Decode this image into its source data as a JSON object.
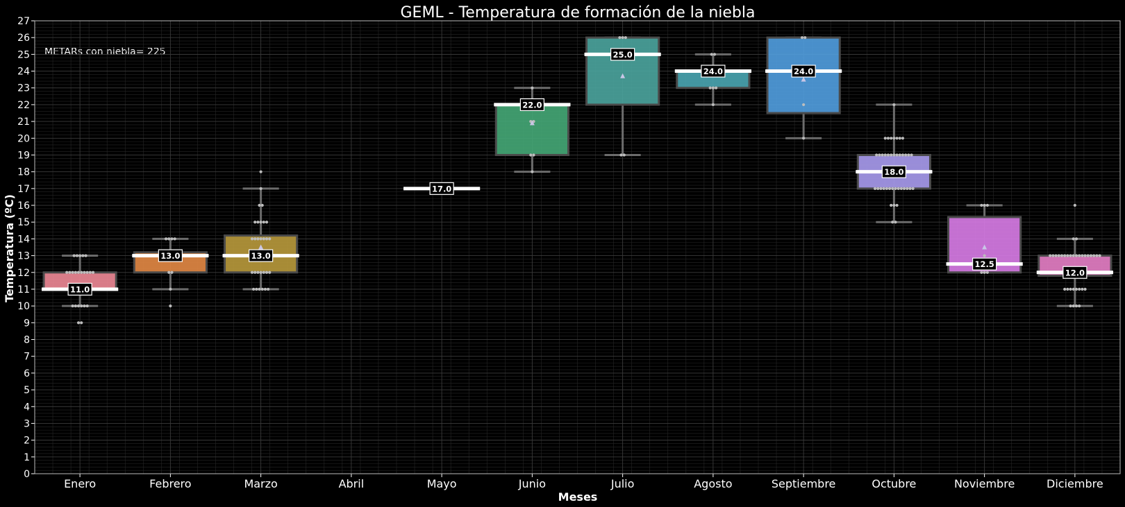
{
  "chart_data": {
    "type": "box",
    "title": "GEML - Temperatura de formación de la niebla",
    "xlabel": "Meses",
    "ylabel": "Temperatura (ºC)",
    "annotation": "METARs con niebla= 225",
    "ylim": [
      0,
      27
    ],
    "yticks": [
      0,
      1,
      2,
      3,
      4,
      5,
      6,
      7,
      8,
      9,
      10,
      11,
      12,
      13,
      14,
      15,
      16,
      17,
      18,
      19,
      20,
      21,
      22,
      23,
      24,
      25,
      26,
      27
    ],
    "grid": true,
    "categories": [
      "Enero",
      "Febrero",
      "Marzo",
      "Abril",
      "Mayo",
      "Junio",
      "Julio",
      "Agosto",
      "Septiembre",
      "Octubre",
      "Noviembre",
      "Diciembre"
    ],
    "boxes": [
      {
        "month": "Enero",
        "color": "#f08a97",
        "q1": 11,
        "median": 11,
        "q3": 12,
        "whisker_low": 10,
        "whisker_high": 13,
        "label": "11.0",
        "points": [
          [
            9,
            2
          ],
          [
            10,
            6
          ],
          [
            11,
            7
          ],
          [
            12,
            10
          ],
          [
            13,
            5
          ]
        ]
      },
      {
        "month": "Febrero",
        "color": "#e48a45",
        "q1": 12,
        "median": 13,
        "q3": 13.2,
        "whisker_low": 11,
        "whisker_high": 14,
        "label": "13.0",
        "points": [
          [
            10,
            1
          ],
          [
            11,
            1
          ],
          [
            12,
            2
          ],
          [
            13,
            5
          ],
          [
            14,
            4
          ]
        ]
      },
      {
        "month": "Marzo",
        "color": "#b99a3c",
        "q1": 12,
        "median": 13,
        "q3": 14.2,
        "whisker_low": 11,
        "whisker_high": 17,
        "mean": 13.5,
        "label": "13.0",
        "points": [
          [
            11,
            6
          ],
          [
            12,
            7
          ],
          [
            13,
            7
          ],
          [
            14,
            7
          ],
          [
            15,
            5
          ],
          [
            16,
            2
          ],
          [
            17,
            1
          ],
          [
            18,
            1
          ]
        ]
      },
      {
        "month": "Abril",
        "color": "#999999",
        "empty": true,
        "points": []
      },
      {
        "month": "Mayo",
        "color": "#ffffff",
        "q1": 17,
        "median": 17,
        "q3": 17,
        "whisker_low": 17,
        "whisker_high": 17,
        "label": "17.0",
        "points": [
          [
            17,
            1
          ]
        ]
      },
      {
        "month": "Junio",
        "color": "#45a877",
        "q1": 19,
        "median": 22,
        "q3": 22,
        "whisker_low": 18,
        "whisker_high": 23,
        "mean": 20.9,
        "label": "22.0",
        "points": [
          [
            18,
            1
          ],
          [
            19,
            2
          ],
          [
            21,
            2
          ],
          [
            22,
            1
          ],
          [
            23,
            1
          ]
        ]
      },
      {
        "month": "Julio",
        "color": "#4ba59f",
        "q1": 22,
        "median": 25,
        "q3": 26,
        "whisker_low": 19,
        "whisker_high": 26,
        "mean": 23.7,
        "label": "25.0",
        "points": [
          [
            19,
            2
          ],
          [
            26,
            3
          ]
        ]
      },
      {
        "month": "Agosto",
        "color": "#4aa6b3",
        "q1": 23,
        "median": 24,
        "q3": 24,
        "whisker_low": 22,
        "whisker_high": 25,
        "label": "24.0",
        "points": [
          [
            22,
            1
          ],
          [
            23,
            3
          ],
          [
            24,
            3
          ],
          [
            25,
            2
          ]
        ]
      },
      {
        "month": "Septiembre",
        "color": "#519ee0",
        "q1": 21.5,
        "median": 24,
        "q3": 26,
        "whisker_low": 20,
        "whisker_high": 26,
        "mean": 23.5,
        "label": "24.0",
        "points": [
          [
            20,
            1
          ],
          [
            22,
            1
          ],
          [
            26,
            2
          ]
        ]
      },
      {
        "month": "Octubre",
        "color": "#aa9cf0",
        "q1": 17,
        "median": 18,
        "q3": 19,
        "whisker_low": 15,
        "whisker_high": 22,
        "label": "18.0",
        "points": [
          [
            15,
            2
          ],
          [
            16,
            3
          ],
          [
            17,
            14
          ],
          [
            18,
            14
          ],
          [
            19,
            13
          ],
          [
            20,
            7
          ],
          [
            22,
            1
          ]
        ]
      },
      {
        "month": "Noviembre",
        "color": "#d97ce8",
        "q1": 12,
        "median": 12.5,
        "q3": 15.3,
        "whisker_low": 12,
        "whisker_high": 16,
        "mean": 13.5,
        "label": "12.5",
        "points": [
          [
            12,
            3
          ],
          [
            13,
            1
          ],
          [
            16,
            3
          ]
        ]
      },
      {
        "month": "Diciembre",
        "color": "#e77fc6",
        "q1": 11.8,
        "median": 12,
        "q3": 13,
        "whisker_low": 10,
        "whisker_high": 14,
        "label": "12.0",
        "points": [
          [
            10,
            4
          ],
          [
            11,
            8
          ],
          [
            12,
            10
          ],
          [
            13,
            18
          ],
          [
            14,
            2
          ],
          [
            16,
            1
          ]
        ]
      }
    ],
    "colors": {
      "background": "#000000",
      "text": "#ffffff",
      "grid": "#3a3a3a",
      "whisker": "#6c6c6c",
      "point": "#bdbdbd",
      "median": "#ffffff",
      "mean_marker": "#c9c6e6"
    }
  }
}
